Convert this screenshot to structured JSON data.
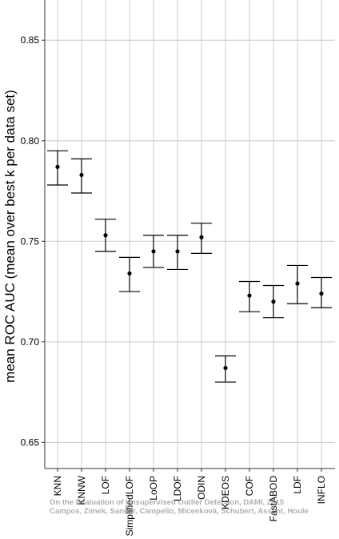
{
  "chart_data": {
    "type": "scatter",
    "style": "point-with-error-bars",
    "ylabel": "mean ROC AUC (mean over best k per data set)",
    "xlabel": "",
    "ylim": [
      0.637,
      0.87
    ],
    "yticks": [
      0.65,
      0.7,
      0.75,
      0.8,
      0.85
    ],
    "ytick_labels": [
      "0.65",
      "0.70",
      "0.75",
      "0.80",
      "0.85"
    ],
    "grid": true,
    "categories": [
      "KNN",
      "KNNW",
      "LOF",
      "SimplifiedLOF",
      "LoOP",
      "LDOF",
      "ODIN",
      "KDEOS",
      "COF",
      "FastABOD",
      "LDF",
      "INFLO"
    ],
    "series": [
      {
        "mean": [
          0.787,
          0.783,
          0.753,
          0.734,
          0.745,
          0.745,
          0.752,
          0.687,
          0.723,
          0.72,
          0.729,
          0.724
        ],
        "lower": [
          0.778,
          0.774,
          0.745,
          0.725,
          0.737,
          0.736,
          0.744,
          0.68,
          0.715,
          0.712,
          0.719,
          0.717
        ],
        "upper": [
          0.795,
          0.791,
          0.761,
          0.742,
          0.753,
          0.753,
          0.759,
          0.693,
          0.73,
          0.728,
          0.738,
          0.732
        ]
      }
    ],
    "colors": {
      "grid": "#cccccc",
      "point": "#000000",
      "axis": "#333333"
    }
  },
  "watermark": {
    "line1": "On the Evaluation of Unsupervised Outlier Detection, DAMI, 2015",
    "line2": "Campos, Zimek, Sander, Campello, Micenková, Schubert, Assent, Houle"
  }
}
